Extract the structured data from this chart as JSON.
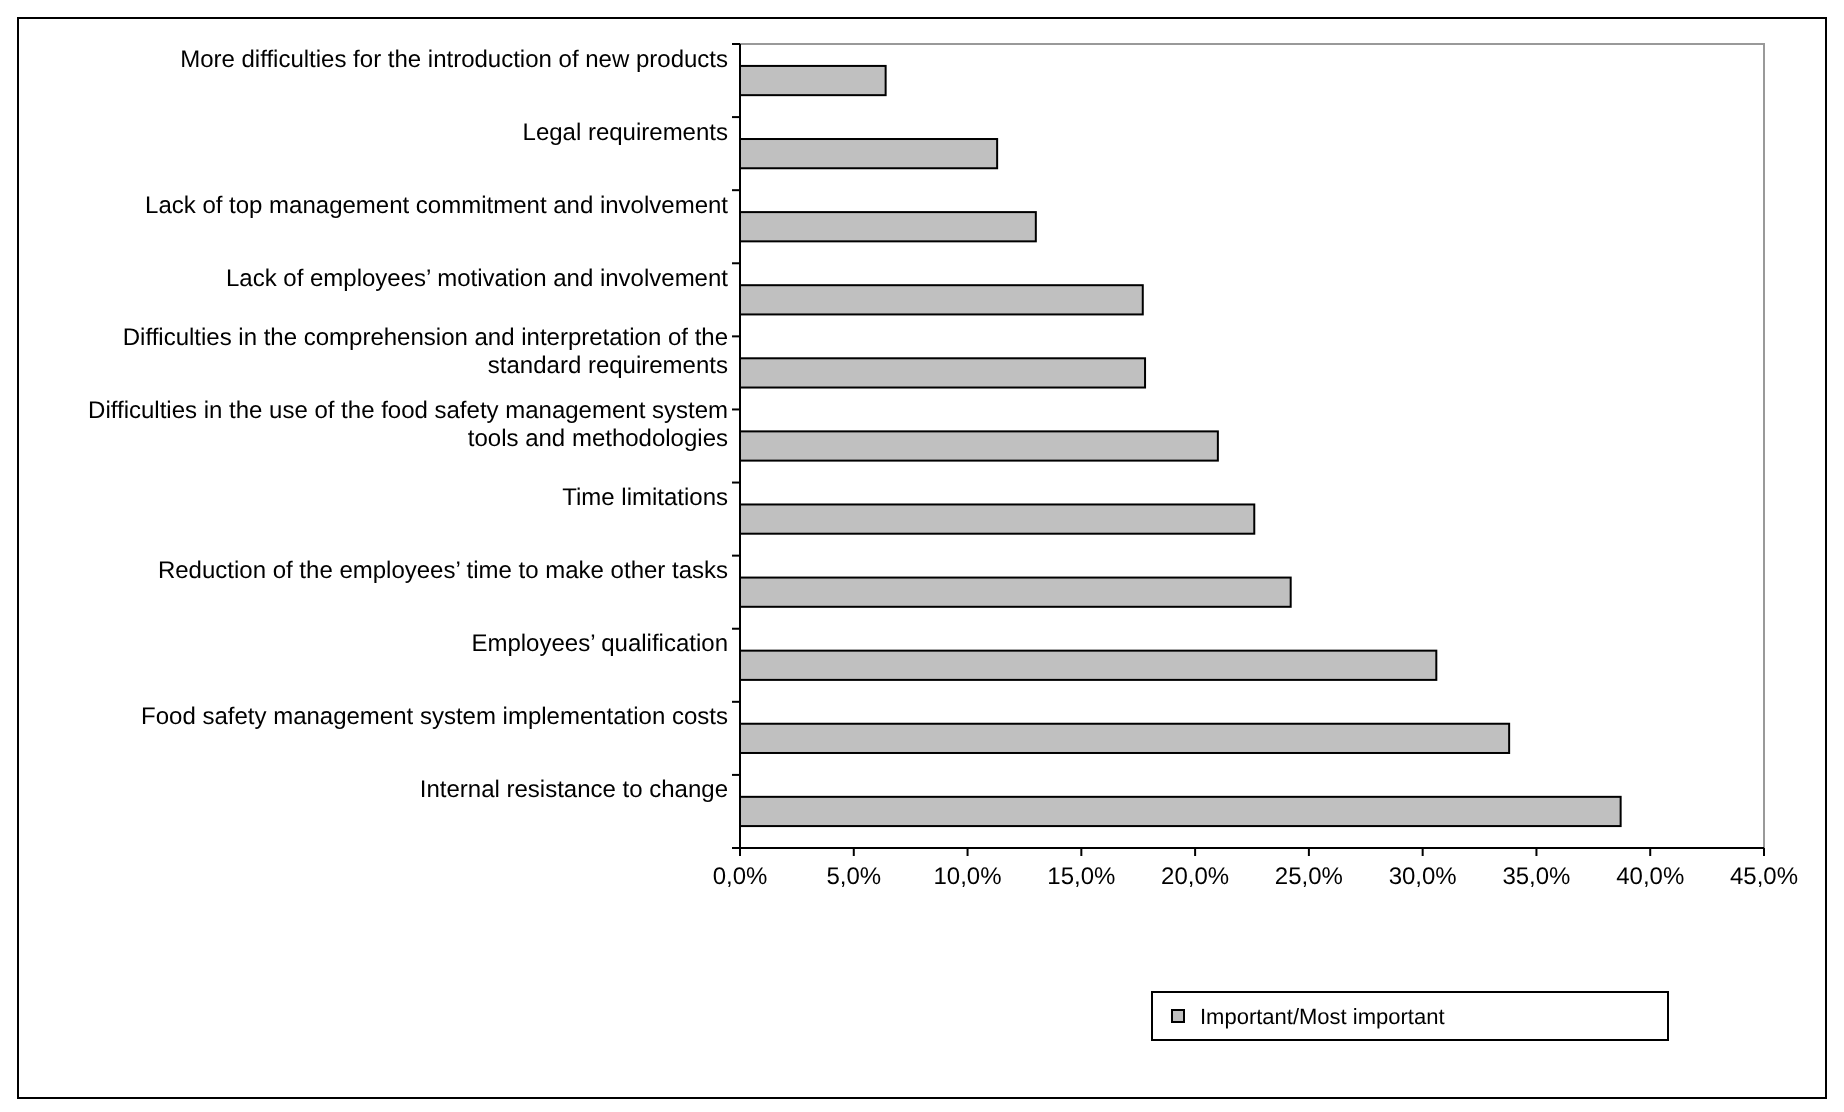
{
  "chart_data": {
    "type": "bar",
    "orientation": "horizontal",
    "categories": [
      "More difficulties for the introduction of new products",
      "Legal requirements",
      "Lack of top management commitment and involvement",
      "Lack of employees’ motivation and involvement",
      "Difficulties in the comprehension and interpretation of the standard requirements",
      "Difficulties in the use of the food safety management system tools and methodologies",
      "Time limitations",
      "Reduction of the employees’ time to make other tasks",
      "Employees’ qualification",
      "Food safety management system implementation costs",
      "Internal resistance to change"
    ],
    "series": [
      {
        "name": "Important/Most important",
        "color": "#c0c0c0",
        "values": [
          6.4,
          11.3,
          13.0,
          17.7,
          17.8,
          21.0,
          22.6,
          24.2,
          30.6,
          33.8,
          38.7
        ]
      }
    ],
    "xlim": [
      0,
      45
    ],
    "xticks": [
      {
        "value": 0,
        "label": "0,0%"
      },
      {
        "value": 5,
        "label": "5,0%"
      },
      {
        "value": 10,
        "label": "10,0%"
      },
      {
        "value": 15,
        "label": "15,0%"
      },
      {
        "value": 20,
        "label": "20,0%"
      },
      {
        "value": 25,
        "label": "25,0%"
      },
      {
        "value": 30,
        "label": "30,0%"
      },
      {
        "value": 35,
        "label": "35,0%"
      },
      {
        "value": 40,
        "label": "40,0%"
      },
      {
        "value": 45,
        "label": "45,0%"
      }
    ],
    "grid": false,
    "legend": "bottom"
  }
}
